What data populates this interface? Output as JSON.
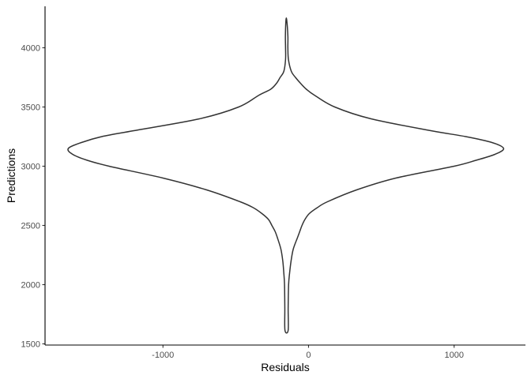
{
  "chart_data": {
    "type": "violin",
    "title": "",
    "xlabel": "Residuals",
    "ylabel": "Predictions",
    "xlim": [
      -1810,
      1490
    ],
    "ylim": [
      1490,
      4350
    ],
    "xticks": [
      -1000,
      0,
      1000
    ],
    "yticks": [
      1500,
      2000,
      2500,
      3000,
      3500,
      4000
    ],
    "xtick_labels": [
      "-1000",
      "0",
      "1000"
    ],
    "ytick_labels": [
      "1500",
      "2000",
      "2500",
      "3000",
      "3500",
      "4000"
    ],
    "grid": false,
    "legend": "none",
    "colors": {
      "outline": "#333333",
      "fill": "#ffffff",
      "axis": "#000000"
    },
    "violin": {
      "center": -150,
      "y_min": 1615,
      "y_max": 4235,
      "profile": [
        {
          "y": 1615,
          "left": -162,
          "right": -140
        },
        {
          "y": 1800,
          "left": -163,
          "right": -140
        },
        {
          "y": 2000,
          "left": -165,
          "right": -137
        },
        {
          "y": 2100,
          "left": -170,
          "right": -130
        },
        {
          "y": 2200,
          "left": -177,
          "right": -120
        },
        {
          "y": 2300,
          "left": -190,
          "right": -105
        },
        {
          "y": 2400,
          "left": -215,
          "right": -75
        },
        {
          "y": 2450,
          "left": -230,
          "right": -60
        },
        {
          "y": 2500,
          "left": -252,
          "right": -45
        },
        {
          "y": 2550,
          "left": -275,
          "right": -25
        },
        {
          "y": 2600,
          "left": -320,
          "right": 5
        },
        {
          "y": 2650,
          "left": -380,
          "right": 60
        },
        {
          "y": 2700,
          "left": -470,
          "right": 130
        },
        {
          "y": 2800,
          "left": -700,
          "right": 330
        },
        {
          "y": 2900,
          "left": -1000,
          "right": 600
        },
        {
          "y": 3000,
          "left": -1370,
          "right": 1000
        },
        {
          "y": 3050,
          "left": -1520,
          "right": 1150
        },
        {
          "y": 3100,
          "left": -1620,
          "right": 1280
        },
        {
          "y": 3150,
          "left": -1650,
          "right": 1340
        },
        {
          "y": 3200,
          "left": -1560,
          "right": 1260
        },
        {
          "y": 3250,
          "left": -1420,
          "right": 1080
        },
        {
          "y": 3300,
          "left": -1200,
          "right": 840
        },
        {
          "y": 3400,
          "left": -750,
          "right": 430
        },
        {
          "y": 3500,
          "left": -480,
          "right": 180
        },
        {
          "y": 3600,
          "left": -340,
          "right": 40
        },
        {
          "y": 3650,
          "left": -260,
          "right": -15
        },
        {
          "y": 3700,
          "left": -220,
          "right": -55
        },
        {
          "y": 3750,
          "left": -195,
          "right": -90
        },
        {
          "y": 3800,
          "left": -170,
          "right": -118
        },
        {
          "y": 3900,
          "left": -158,
          "right": -138
        },
        {
          "y": 4000,
          "left": -158,
          "right": -142
        },
        {
          "y": 4100,
          "left": -159,
          "right": -142
        },
        {
          "y": 4235,
          "left": -155,
          "right": -150
        }
      ]
    }
  }
}
